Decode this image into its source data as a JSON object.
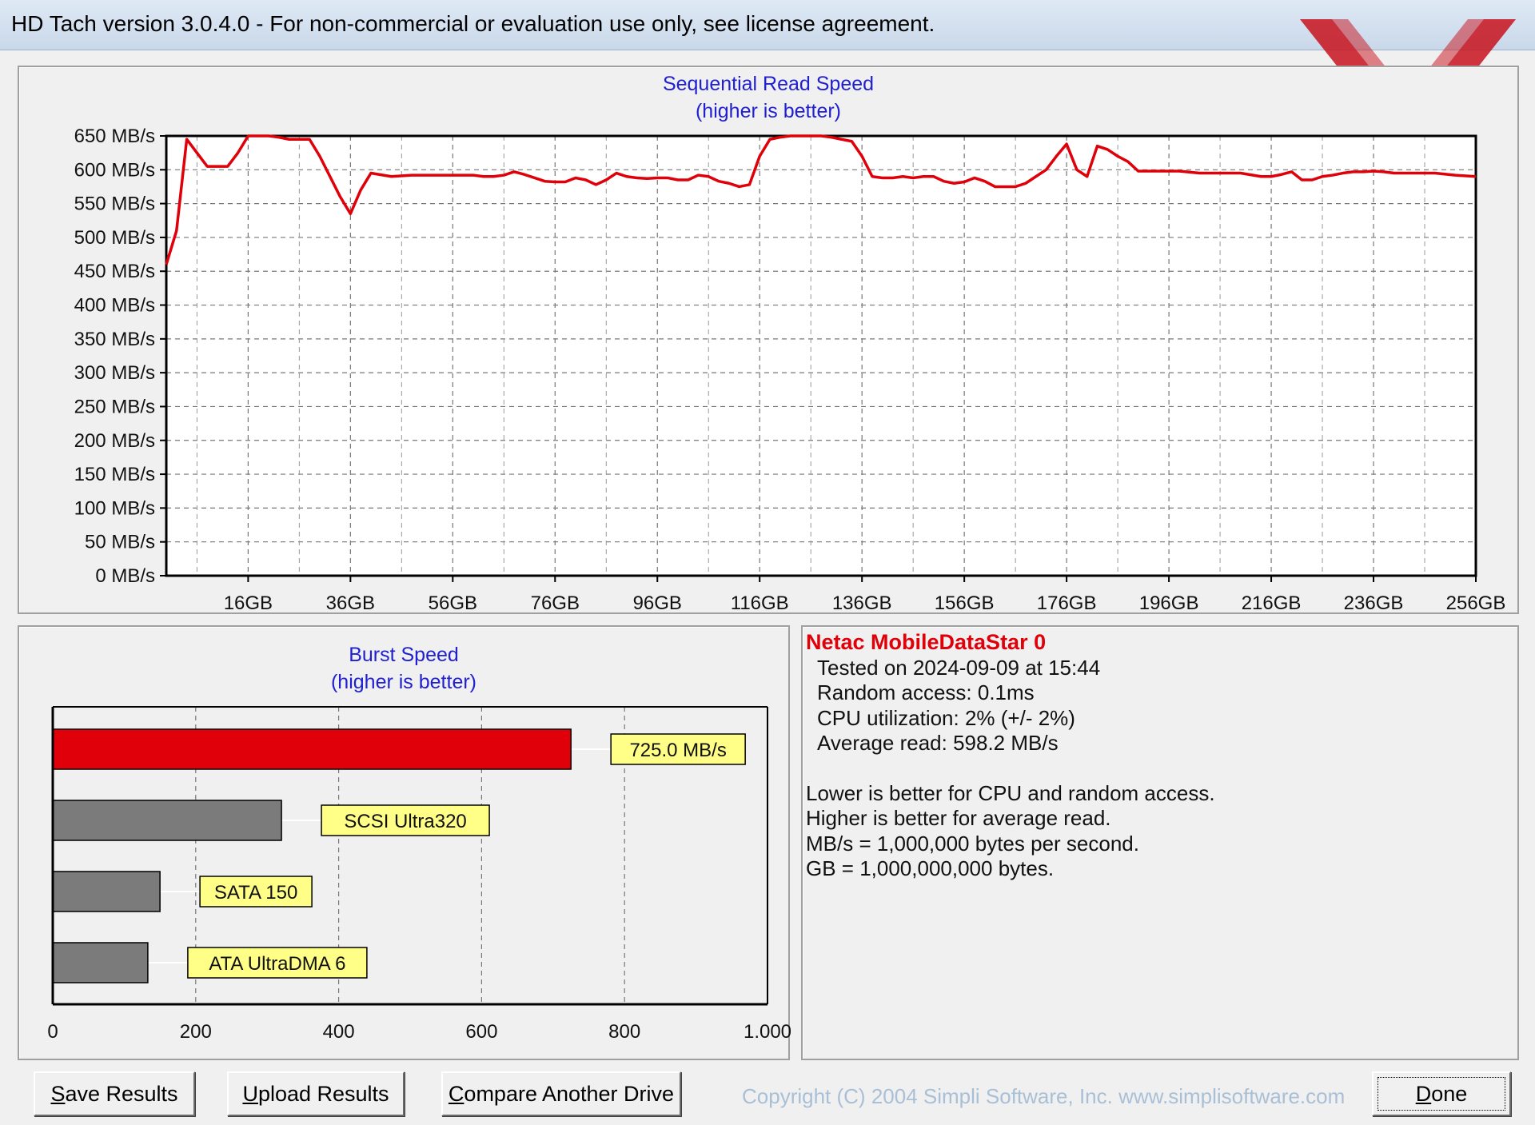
{
  "window": {
    "title": "HD Tach version 3.0.4.0  - For non-commercial or evaluation use only, see license agreement."
  },
  "colors": {
    "series_red": "#e0000a",
    "bar_gray": "#7b7b7b",
    "label_yellow": "#ffff88",
    "title_blue": "#2020d0"
  },
  "logo": {
    "icon": "red-xx-logo"
  },
  "seq_chart": {
    "title": "Sequential Read Speed",
    "subtitle": "(higher is better)"
  },
  "burst_chart": {
    "title": "Burst Speed",
    "subtitle": "(higher is better)"
  },
  "chart_data": [
    {
      "type": "line",
      "title": "Sequential Read Speed",
      "subtitle": "(higher is better)",
      "y_unit": "MB/s",
      "x_unit": "GB",
      "ylim": [
        0,
        650
      ],
      "xlim": [
        0,
        256
      ],
      "y_ticks": [
        "0 MB/s",
        "50 MB/s",
        "100 MB/s",
        "150 MB/s",
        "200 MB/s",
        "250 MB/s",
        "300 MB/s",
        "350 MB/s",
        "400 MB/s",
        "450 MB/s",
        "500 MB/s",
        "550 MB/s",
        "600 MB/s",
        "650 MB/s"
      ],
      "x_ticks": [
        "16GB",
        "36GB",
        "56GB",
        "76GB",
        "96GB",
        "116GB",
        "136GB",
        "156GB",
        "176GB",
        "196GB",
        "216GB",
        "236GB",
        "256GB"
      ],
      "grid": true,
      "series": [
        {
          "x": [
            0,
            2,
            4,
            6,
            8,
            10,
            12,
            14,
            16,
            18,
            20,
            22,
            24,
            26,
            28,
            30,
            32,
            34,
            36,
            38,
            40,
            44,
            48,
            52,
            56,
            60,
            62,
            64,
            66,
            68,
            70,
            72,
            74,
            76,
            78,
            80,
            82,
            84,
            86,
            88,
            90,
            92,
            94,
            96,
            98,
            100,
            102,
            104,
            106,
            108,
            110,
            112,
            114,
            116,
            118,
            120,
            122,
            124,
            126,
            128,
            130,
            132,
            134,
            136,
            138,
            140,
            142,
            144,
            146,
            148,
            150,
            152,
            154,
            156,
            158,
            160,
            162,
            164,
            166,
            168,
            170,
            172,
            174,
            176,
            178,
            180,
            182,
            184,
            186,
            188,
            190,
            194,
            198,
            202,
            206,
            210,
            214,
            216,
            218,
            220,
            222,
            224,
            226,
            228,
            230,
            232,
            234,
            236,
            238,
            240,
            244,
            248,
            252,
            256
          ],
          "y": [
            460,
            510,
            645,
            625,
            605,
            605,
            605,
            625,
            650,
            650,
            650,
            648,
            645,
            645,
            645,
            620,
            590,
            560,
            535,
            570,
            595,
            590,
            592,
            592,
            592,
            592,
            590,
            590,
            592,
            597,
            593,
            588,
            583,
            582,
            582,
            588,
            585,
            578,
            585,
            595,
            590,
            588,
            587,
            588,
            588,
            585,
            585,
            592,
            590,
            583,
            580,
            575,
            578,
            620,
            645,
            648,
            650,
            650,
            650,
            650,
            648,
            645,
            642,
            620,
            590,
            588,
            588,
            590,
            588,
            590,
            590,
            583,
            580,
            582,
            588,
            583,
            575,
            575,
            575,
            580,
            590,
            600,
            620,
            638,
            600,
            590,
            635,
            630,
            620,
            612,
            598,
            598,
            598,
            595,
            595,
            595,
            590,
            590,
            593,
            597,
            585,
            585,
            590,
            592,
            595,
            597,
            597,
            598,
            597,
            595,
            595,
            595,
            592,
            590
          ]
        }
      ]
    },
    {
      "type": "bar",
      "title": "Burst Speed",
      "subtitle": "(higher is better)",
      "orientation": "horizontal",
      "xlim": [
        0,
        1000
      ],
      "x_ticks": [
        "0",
        "200",
        "400",
        "600",
        "800",
        "1.000"
      ],
      "grid": true,
      "categories": [
        "725.0 MB/s",
        "SCSI Ultra320",
        "SATA 150",
        "ATA UltraDMA 6"
      ],
      "values": [
        725,
        320,
        150,
        133
      ],
      "colors": [
        "#e0000a",
        "#7b7b7b",
        "#7b7b7b",
        "#7b7b7b"
      ]
    }
  ],
  "info": {
    "drive_name": "Netac MobileDataStar 0",
    "tested_on": "Tested on 2024-09-09 at 15:44",
    "random_access": "Random access: 0.1ms",
    "cpu": "CPU utilization: 2% (+/- 2%)",
    "avg_read": "Average read: 598.2 MB/s",
    "note1": "Lower is better for CPU and random access.",
    "note2": "Higher is better for average read.",
    "note3": "MB/s = 1,000,000 bytes per second.",
    "note4": "GB = 1,000,000,000 bytes."
  },
  "buttons": {
    "save": {
      "first": "S",
      "rest": "ave Results"
    },
    "upload": {
      "first": "U",
      "rest": "pload Results"
    },
    "compare": {
      "first": "C",
      "rest": "ompare Another Drive"
    },
    "done": {
      "first": "D",
      "rest": "one"
    }
  },
  "footer": {
    "copyright": "Copyright (C) 2004 Simpli Software, Inc. www.simplisoftware.com"
  }
}
